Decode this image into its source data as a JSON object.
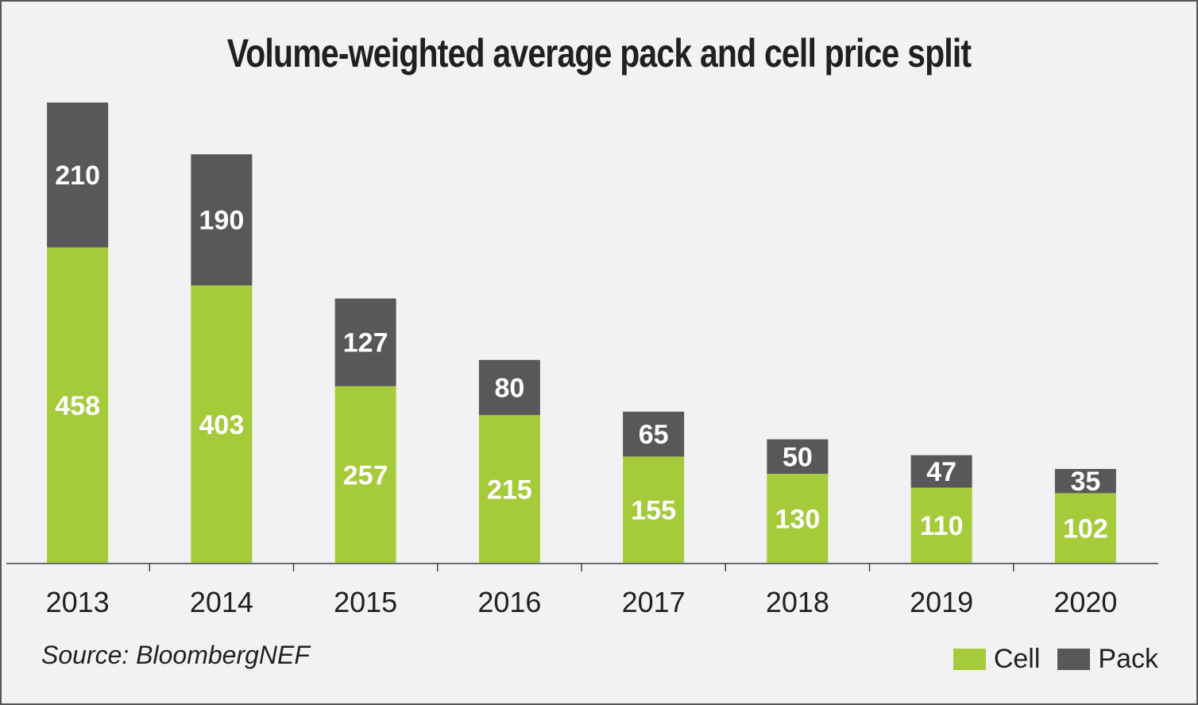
{
  "chart_data": {
    "type": "bar",
    "stacked": true,
    "title": "Volume-weighted average pack and cell price split",
    "xlabel": "",
    "ylabel": "",
    "categories": [
      "2013",
      "2014",
      "2015",
      "2016",
      "2017",
      "2018",
      "2019",
      "2020"
    ],
    "series": [
      {
        "name": "Cell",
        "color": "#a6cb3a",
        "values": [
          458,
          403,
          257,
          215,
          155,
          130,
          110,
          102
        ]
      },
      {
        "name": "Pack",
        "color": "#58585a",
        "values": [
          210,
          190,
          127,
          80,
          65,
          50,
          47,
          35
        ]
      }
    ],
    "ylim": [
      0,
      700
    ],
    "grid": false,
    "legend_position": "bottom-right",
    "source": "Source: BloombergNEF"
  }
}
